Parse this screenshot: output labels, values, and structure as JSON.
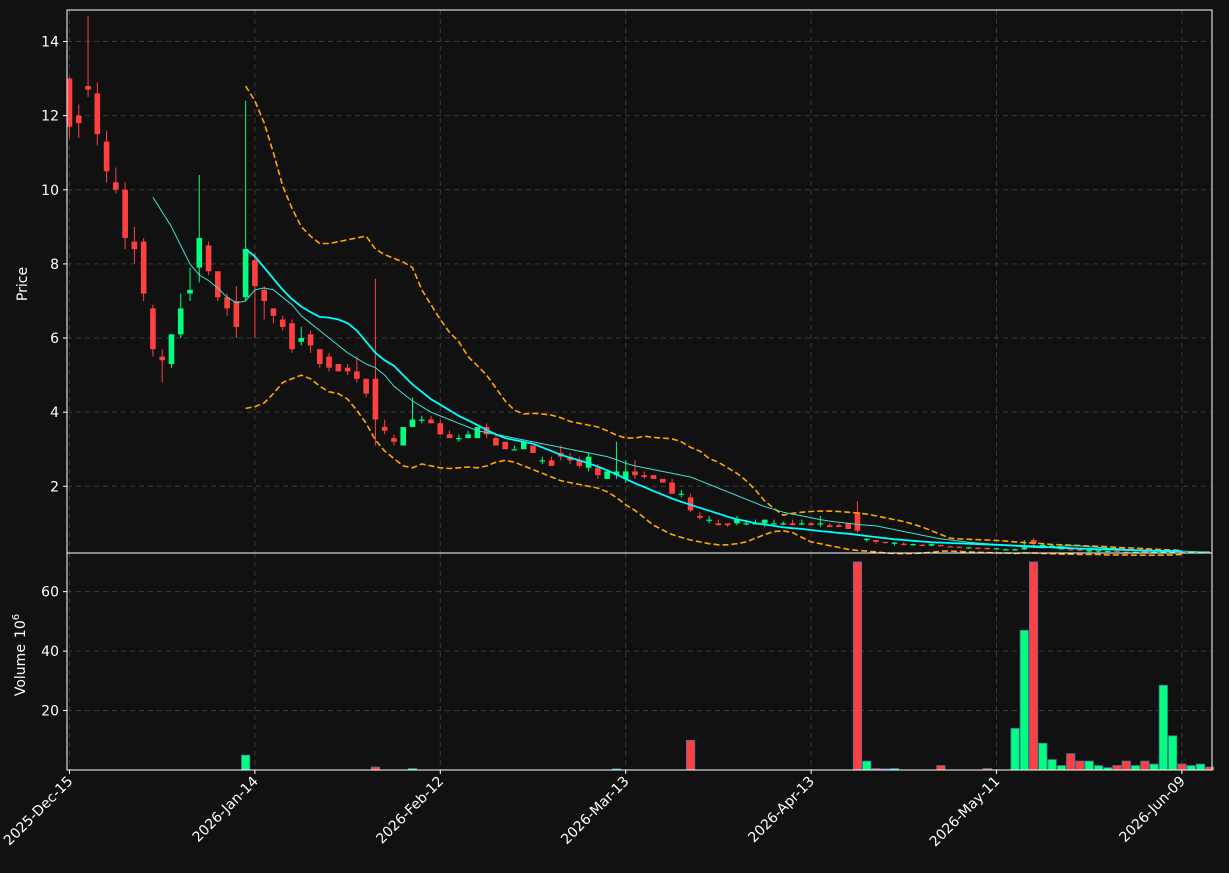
{
  "chart_data": {
    "type": "candlestick",
    "colors": {
      "background": "#111111",
      "up": "#00ff7f",
      "down": "#ff4040",
      "ma_fast": "#40e0d0",
      "ma_slow": "#00ffff",
      "bollinger": "#ffa500",
      "grid": "#3a3a3a",
      "text": "#ffffff"
    },
    "price_panel": {
      "ylabel": "Price",
      "ylim": [
        0.2,
        14.85
      ],
      "yticks": [
        2,
        4,
        6,
        8,
        10,
        12,
        14
      ]
    },
    "volume_panel": {
      "ylabel": "Volume",
      "unit_exponent": "6",
      "ylim": [
        0,
        73
      ],
      "yticks": [
        20,
        40,
        60
      ]
    },
    "x_tick_labels": [
      {
        "index": 0,
        "label": "2025-Dec-15"
      },
      {
        "index": 20,
        "label": "2026-Jan-14"
      },
      {
        "index": 40,
        "label": "2026-Feb-12"
      },
      {
        "index": 60,
        "label": "2026-Mar-13"
      },
      {
        "index": 80,
        "label": "2026-Apr-13"
      },
      {
        "index": 100,
        "label": "2026-May-11"
      },
      {
        "index": 120,
        "label": "2026-Jun-09"
      }
    ],
    "candles": [
      [
        13.0,
        13.05,
        11.4,
        11.7,
        0
      ],
      [
        12.0,
        12.3,
        11.4,
        11.8,
        0
      ],
      [
        12.8,
        14.7,
        12.5,
        12.7,
        0
      ],
      [
        12.6,
        12.9,
        11.2,
        11.5,
        0
      ],
      [
        11.3,
        11.6,
        10.2,
        10.5,
        0
      ],
      [
        10.2,
        10.6,
        9.9,
        10.0,
        0
      ],
      [
        10.0,
        10.2,
        8.4,
        8.7,
        0
      ],
      [
        8.6,
        9.0,
        8.0,
        8.4,
        0
      ],
      [
        8.6,
        8.7,
        7.0,
        7.2,
        0
      ],
      [
        6.8,
        6.9,
        5.5,
        5.7,
        0
      ],
      [
        5.5,
        5.7,
        4.8,
        5.4,
        0
      ],
      [
        5.3,
        6.1,
        5.2,
        6.1,
        0
      ],
      [
        6.1,
        7.2,
        6.0,
        6.8,
        0
      ],
      [
        7.2,
        7.9,
        7.0,
        7.3,
        0
      ],
      [
        7.9,
        10.4,
        7.5,
        8.7,
        0
      ],
      [
        8.5,
        8.6,
        7.7,
        7.8,
        0
      ],
      [
        7.8,
        7.8,
        7.0,
        7.1,
        0
      ],
      [
        7.1,
        7.2,
        6.6,
        6.8,
        0
      ],
      [
        7.0,
        7.4,
        6.0,
        6.3,
        0
      ],
      [
        7.1,
        12.4,
        7.0,
        8.4,
        5
      ],
      [
        8.1,
        8.3,
        6.0,
        7.4,
        0
      ],
      [
        7.3,
        7.4,
        6.5,
        7.0,
        0
      ],
      [
        6.8,
        6.8,
        6.4,
        6.6,
        0
      ],
      [
        6.5,
        6.6,
        6.2,
        6.3,
        0
      ],
      [
        6.4,
        6.5,
        5.6,
        5.7,
        0
      ],
      [
        5.9,
        6.3,
        5.8,
        6.0,
        0
      ],
      [
        6.1,
        6.2,
        5.6,
        5.8,
        0
      ],
      [
        5.7,
        5.7,
        5.2,
        5.3,
        0
      ],
      [
        5.5,
        5.6,
        5.1,
        5.2,
        0
      ],
      [
        5.3,
        5.3,
        5.1,
        5.1,
        0
      ],
      [
        5.2,
        5.3,
        5.0,
        5.1,
        0
      ],
      [
        5.1,
        5.5,
        4.8,
        4.9,
        0
      ],
      [
        4.9,
        4.9,
        4.4,
        4.5,
        0
      ],
      [
        4.9,
        7.6,
        3.1,
        3.8,
        1
      ],
      [
        3.6,
        3.8,
        3.4,
        3.5,
        0
      ],
      [
        3.3,
        3.4,
        3.1,
        3.2,
        0
      ],
      [
        3.1,
        3.6,
        3.1,
        3.6,
        0
      ],
      [
        3.6,
        4.4,
        3.6,
        3.8,
        0.5
      ],
      [
        3.8,
        3.9,
        3.7,
        3.8,
        0
      ],
      [
        3.8,
        3.9,
        3.7,
        3.7,
        0
      ],
      [
        3.7,
        3.8,
        3.4,
        3.4,
        0
      ],
      [
        3.4,
        3.5,
        3.3,
        3.3,
        0
      ],
      [
        3.3,
        3.4,
        3.2,
        3.3,
        0
      ],
      [
        3.3,
        3.5,
        3.3,
        3.4,
        0
      ],
      [
        3.3,
        3.6,
        3.3,
        3.6,
        0
      ],
      [
        3.6,
        3.7,
        3.3,
        3.4,
        0
      ],
      [
        3.3,
        3.4,
        3.1,
        3.1,
        0
      ],
      [
        3.2,
        3.2,
        3.0,
        3.0,
        0
      ],
      [
        3.0,
        3.1,
        3.0,
        3.0,
        0
      ],
      [
        3.0,
        3.2,
        3.0,
        3.2,
        0
      ],
      [
        3.1,
        3.1,
        2.9,
        2.9,
        0
      ],
      [
        2.7,
        2.8,
        2.6,
        2.7,
        0
      ],
      [
        2.7,
        2.8,
        2.6,
        2.55,
        0
      ],
      [
        2.9,
        3.1,
        2.7,
        2.8,
        0
      ],
      [
        2.8,
        2.9,
        2.6,
        2.7,
        0
      ],
      [
        2.7,
        2.8,
        2.5,
        2.55,
        0
      ],
      [
        2.5,
        2.9,
        2.4,
        2.8,
        0
      ],
      [
        2.5,
        2.6,
        2.2,
        2.3,
        0
      ],
      [
        2.2,
        2.4,
        2.2,
        2.4,
        0
      ],
      [
        2.3,
        3.2,
        2.2,
        2.4,
        0.4
      ],
      [
        2.2,
        2.7,
        2.1,
        2.4,
        0
      ],
      [
        2.4,
        2.7,
        2.2,
        2.3,
        0
      ],
      [
        2.3,
        2.4,
        2.2,
        2.25,
        0
      ],
      [
        2.3,
        2.3,
        2.2,
        2.2,
        0
      ],
      [
        2.2,
        2.2,
        2.1,
        2.1,
        0
      ],
      [
        2.1,
        2.2,
        1.8,
        1.8,
        0
      ],
      [
        1.8,
        1.9,
        1.7,
        1.8,
        0
      ],
      [
        1.7,
        1.8,
        1.3,
        1.35,
        10
      ],
      [
        1.2,
        1.3,
        1.1,
        1.15,
        0
      ],
      [
        1.1,
        1.2,
        1.0,
        1.1,
        0
      ],
      [
        1.0,
        1.1,
        0.95,
        0.95,
        0
      ],
      [
        1.0,
        1.0,
        0.9,
        0.95,
        0
      ],
      [
        1.0,
        1.2,
        0.95,
        1.1,
        0
      ],
      [
        1.0,
        1.1,
        0.95,
        1.0,
        0
      ],
      [
        1.0,
        1.1,
        1.0,
        1.0,
        0
      ],
      [
        1.0,
        1.1,
        0.9,
        1.1,
        0
      ],
      [
        1.0,
        1.1,
        1.0,
        1.0,
        0
      ],
      [
        1.0,
        1.05,
        0.95,
        1.0,
        0
      ],
      [
        1.0,
        1.1,
        0.95,
        0.95,
        0
      ],
      [
        1.0,
        1.1,
        0.95,
        1.0,
        0
      ],
      [
        1.0,
        1.05,
        0.95,
        0.95,
        0
      ],
      [
        1.0,
        1.2,
        0.9,
        1.0,
        0
      ],
      [
        0.95,
        1.0,
        0.9,
        0.9,
        0
      ],
      [
        0.95,
        1.0,
        0.9,
        0.9,
        0
      ],
      [
        1.0,
        1.0,
        0.85,
        0.85,
        0
      ],
      [
        1.3,
        1.6,
        0.75,
        0.8,
        70
      ],
      [
        0.55,
        0.6,
        0.5,
        0.58,
        3
      ],
      [
        0.55,
        0.55,
        0.45,
        0.5,
        0.5
      ],
      [
        0.5,
        0.5,
        0.45,
        0.48,
        0.4
      ],
      [
        0.45,
        0.5,
        0.4,
        0.48,
        0.5
      ],
      [
        0.45,
        0.5,
        0.4,
        0.42,
        0
      ],
      [
        0.42,
        0.45,
        0.4,
        0.44,
        0
      ],
      [
        0.42,
        0.45,
        0.4,
        0.4,
        0
      ],
      [
        0.4,
        0.45,
        0.38,
        0.44,
        0
      ],
      [
        0.42,
        0.42,
        0.38,
        0.38,
        1.5
      ],
      [
        0.38,
        0.4,
        0.35,
        0.37,
        0
      ],
      [
        0.37,
        0.38,
        0.34,
        0.35,
        0
      ],
      [
        0.35,
        0.36,
        0.33,
        0.35,
        0
      ],
      [
        0.34,
        0.36,
        0.3,
        0.33,
        0
      ],
      [
        0.34,
        0.34,
        0.3,
        0.3,
        0.5
      ],
      [
        0.3,
        0.34,
        0.3,
        0.33,
        0
      ],
      [
        0.3,
        0.32,
        0.29,
        0.3,
        0
      ],
      [
        0.28,
        0.32,
        0.26,
        0.3,
        14
      ],
      [
        0.3,
        0.55,
        0.28,
        0.35,
        47
      ],
      [
        0.55,
        0.6,
        0.4,
        0.45,
        70
      ],
      [
        0.4,
        0.45,
        0.35,
        0.42,
        9
      ],
      [
        0.35,
        0.42,
        0.33,
        0.4,
        3.5
      ],
      [
        0.3,
        0.35,
        0.3,
        0.33,
        1.5
      ],
      [
        0.3,
        0.34,
        0.28,
        0.28,
        5.5
      ],
      [
        0.3,
        0.3,
        0.25,
        0.26,
        3
      ],
      [
        0.24,
        0.3,
        0.22,
        0.28,
        3
      ],
      [
        0.25,
        0.28,
        0.22,
        0.27,
        1.5
      ],
      [
        0.25,
        0.26,
        0.22,
        0.26,
        0.8
      ],
      [
        0.26,
        0.26,
        0.22,
        0.23,
        1.5
      ],
      [
        0.24,
        0.24,
        0.2,
        0.21,
        3
      ],
      [
        0.21,
        0.24,
        0.2,
        0.23,
        1.5
      ],
      [
        0.24,
        0.25,
        0.21,
        0.21,
        3
      ],
      [
        0.2,
        0.24,
        0.2,
        0.23,
        2
      ],
      [
        0.2,
        0.25,
        0.19,
        0.24,
        28.5
      ],
      [
        0.21,
        0.25,
        0.2,
        0.24,
        11.5
      ],
      [
        0.23,
        0.23,
        0.2,
        0.2,
        2
      ],
      [
        0.2,
        0.24,
        0.2,
        0.23,
        1.5
      ],
      [
        0.21,
        0.24,
        0.2,
        0.23,
        2
      ],
      [
        0.22,
        0.22,
        0.2,
        0.2,
        1
      ]
    ],
    "ma_fast": {
      "start": 9,
      "values": [
        9.8,
        9.4,
        9.0,
        8.5,
        8.0,
        7.7,
        7.55,
        7.35,
        7.1,
        6.95,
        7.0,
        7.3,
        7.35,
        7.3,
        7.1,
        6.9,
        6.6,
        6.4,
        6.2,
        6.0,
        5.8,
        5.6,
        5.45,
        5.3,
        5.2,
        5.0,
        4.7,
        4.5,
        4.3,
        4.15,
        4.0,
        3.9,
        3.8,
        3.7,
        3.6,
        3.5,
        3.45,
        3.4,
        3.35,
        3.3,
        3.25,
        3.2,
        3.15,
        3.1,
        3.05,
        3.0,
        2.95,
        2.9,
        2.85,
        2.8,
        2.72,
        2.62,
        2.55,
        2.5,
        2.45,
        2.4,
        2.35,
        2.3,
        2.25,
        2.15,
        2.05,
        1.95,
        1.85,
        1.75,
        1.65,
        1.55,
        1.45,
        1.38,
        1.3,
        1.25,
        1.2,
        1.15,
        1.1,
        1.06,
        1.03,
        1.0,
        0.97,
        0.95,
        0.93,
        0.88,
        0.83,
        0.78,
        0.73,
        0.68,
        0.63,
        0.58,
        0.55,
        0.52,
        0.49,
        0.47,
        0.45,
        0.43,
        0.41,
        0.39,
        0.37,
        0.35,
        0.34,
        0.35,
        0.38,
        0.4,
        0.39,
        0.37,
        0.35,
        0.33,
        0.32,
        0.3,
        0.29,
        0.28,
        0.27,
        0.27,
        0.26,
        0.25,
        0.24,
        0.23,
        0.23
      ]
    },
    "ma_slow": {
      "start": 19,
      "values": [
        8.4,
        8.2,
        7.9,
        7.6,
        7.3,
        7.05,
        6.85,
        6.7,
        6.57,
        6.55,
        6.5,
        6.4,
        6.2,
        5.9,
        5.6,
        5.4,
        5.25,
        5.0,
        4.75,
        4.55,
        4.35,
        4.2,
        4.05,
        3.9,
        3.78,
        3.65,
        3.52,
        3.4,
        3.3,
        3.25,
        3.2,
        3.15,
        3.05,
        2.95,
        2.85,
        2.77,
        2.7,
        2.62,
        2.53,
        2.43,
        2.32,
        2.2,
        2.08,
        1.98,
        1.87,
        1.77,
        1.67,
        1.58,
        1.5,
        1.42,
        1.34,
        1.26,
        1.18,
        1.11,
        1.06,
        1.0,
        0.97,
        0.93,
        0.89,
        0.87,
        0.85,
        0.82,
        0.79,
        0.77,
        0.74,
        0.72,
        0.69,
        0.66,
        0.63,
        0.6,
        0.57,
        0.55,
        0.53,
        0.51,
        0.49,
        0.48,
        0.47,
        0.46,
        0.45,
        0.44,
        0.43,
        0.42,
        0.41,
        0.4,
        0.39,
        0.38,
        0.37,
        0.35,
        0.34,
        0.33,
        0.32,
        0.31,
        0.3,
        0.3,
        0.29,
        0.28,
        0.27,
        0.26,
        0.26,
        0.25,
        0.25,
        0.25
      ]
    },
    "bollinger_upper": {
      "start": 19,
      "values": [
        12.8,
        12.4,
        11.8,
        11.0,
        10.1,
        9.5,
        9.0,
        8.75,
        8.55,
        8.55,
        8.6,
        8.65,
        8.7,
        8.75,
        8.4,
        8.25,
        8.15,
        8.05,
        7.9,
        7.3,
        6.9,
        6.5,
        6.15,
        5.9,
        5.5,
        5.25,
        5.0,
        4.65,
        4.3,
        4.05,
        3.95,
        3.97,
        3.95,
        3.92,
        3.85,
        3.75,
        3.7,
        3.65,
        3.6,
        3.5,
        3.38,
        3.3,
        3.3,
        3.35,
        3.32,
        3.3,
        3.28,
        3.2,
        3.05,
        2.95,
        2.75,
        2.65,
        2.5,
        2.35,
        2.15,
        1.9,
        1.6,
        1.4,
        1.22,
        1.27,
        1.3,
        1.32,
        1.33,
        1.33,
        1.32,
        1.3,
        1.28,
        1.25,
        1.2,
        1.15,
        1.1,
        1.05,
        0.98,
        0.9,
        0.8,
        0.7,
        0.6,
        0.58,
        0.57,
        0.56,
        0.55,
        0.54,
        0.52,
        0.5,
        0.48,
        0.47,
        0.45,
        0.43,
        0.42,
        0.41,
        0.4,
        0.39,
        0.38,
        0.37,
        0.35,
        0.34,
        0.33,
        0.32,
        0.3,
        0.29,
        0.28,
        0.27
      ]
    },
    "bollinger_lower": {
      "start": 19,
      "values": [
        4.1,
        4.15,
        4.25,
        4.5,
        4.8,
        4.9,
        5.0,
        4.9,
        4.7,
        4.55,
        4.5,
        4.35,
        4.05,
        3.7,
        3.25,
        2.95,
        2.75,
        2.55,
        2.5,
        2.6,
        2.55,
        2.5,
        2.48,
        2.5,
        2.52,
        2.5,
        2.55,
        2.65,
        2.7,
        2.65,
        2.55,
        2.45,
        2.35,
        2.25,
        2.15,
        2.1,
        2.05,
        2.0,
        1.95,
        1.85,
        1.7,
        1.5,
        1.35,
        1.15,
        0.95,
        0.82,
        0.7,
        0.62,
        0.55,
        0.5,
        0.45,
        0.42,
        0.42,
        0.45,
        0.5,
        0.6,
        0.7,
        0.78,
        0.8,
        0.75,
        0.62,
        0.5,
        0.45,
        0.4,
        0.35,
        0.3,
        0.27,
        0.25,
        0.23,
        0.2,
        0.19,
        0.18,
        0.19,
        0.2,
        0.22,
        0.25,
        0.25,
        0.24,
        0.23,
        0.22,
        0.21,
        0.2,
        0.2,
        0.19,
        0.2,
        0.2,
        0.19,
        0.18,
        0.17,
        0.17,
        0.16,
        0.16,
        0.16,
        0.15,
        0.15,
        0.15,
        0.14,
        0.14,
        0.14,
        0.14,
        0.15,
        0.16
      ]
    }
  }
}
